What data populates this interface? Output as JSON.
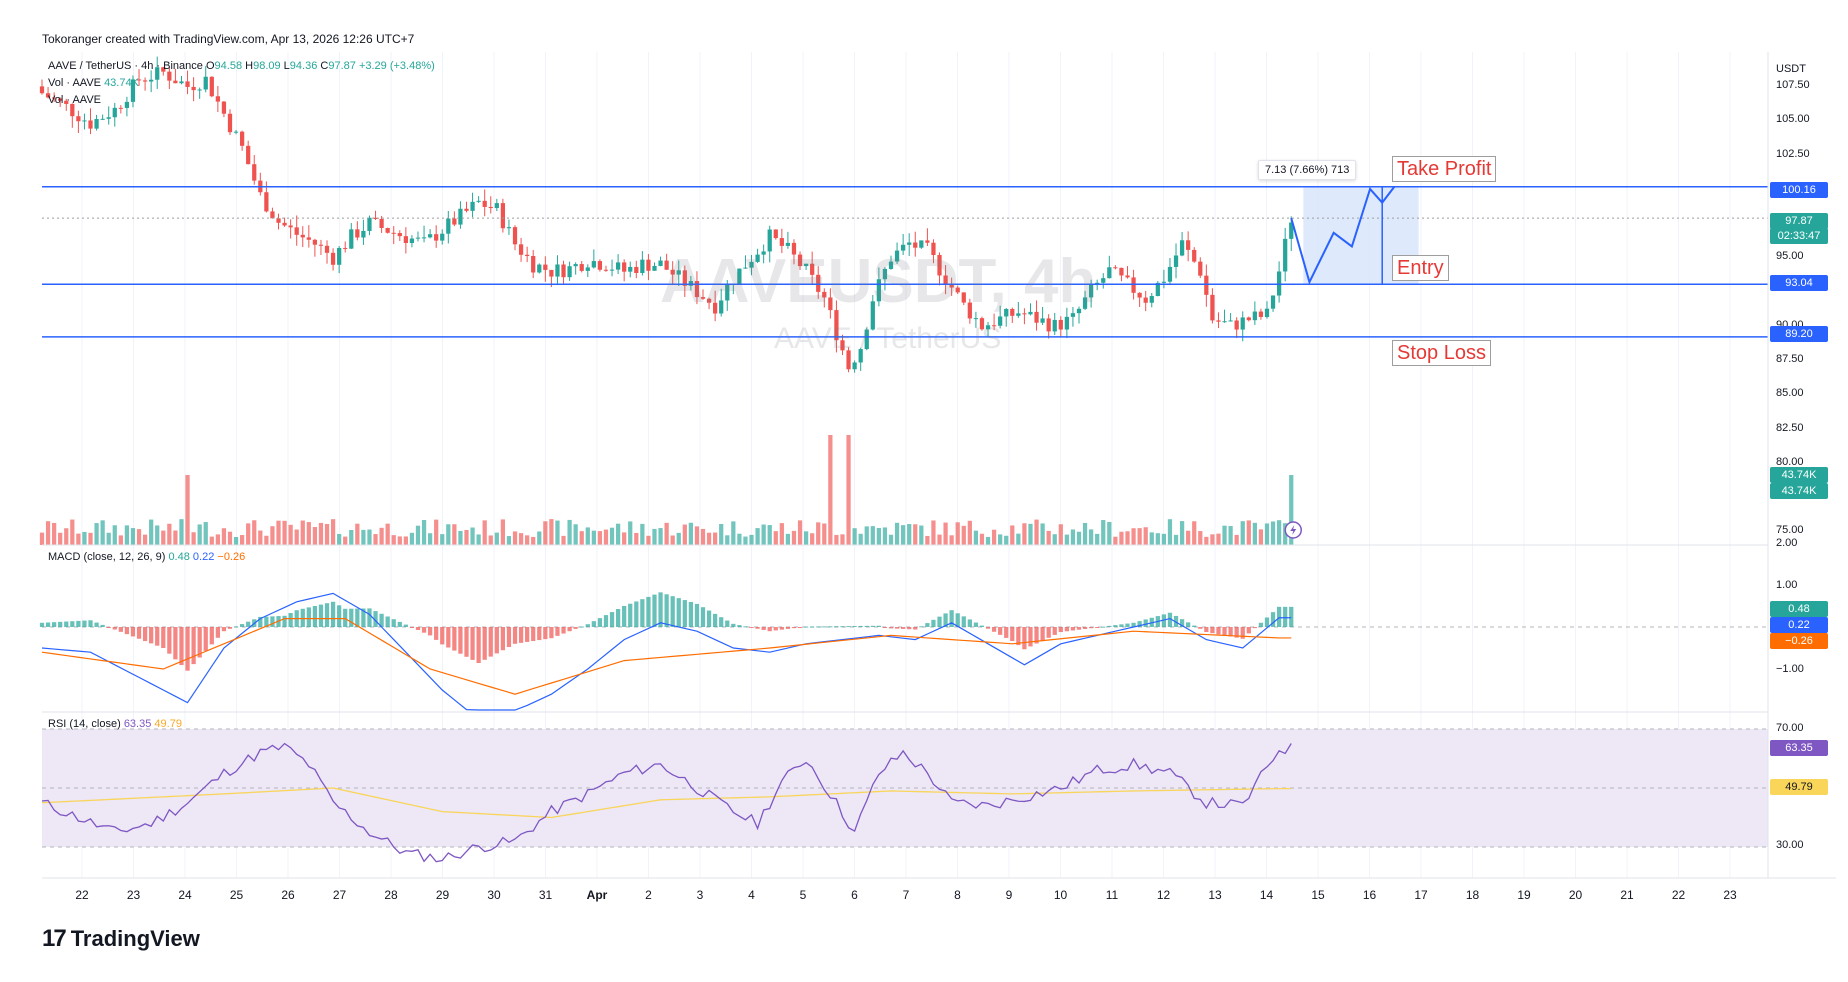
{
  "header": {
    "credit": "Tokoranger created with TradingView.com, Apr 13, 2026 12:26 UTC+7",
    "symbol_line": "AAVE / TetherUS · 4h · Binance",
    "o_label": "O",
    "o_value": "94.58",
    "h_label": "H",
    "h_value": "98.09",
    "l_label": "L",
    "l_value": "94.36",
    "c_label": "C",
    "c_value": "97.87",
    "change": "+3.29 (+3.48%)",
    "vol1": "Vol · AAVE",
    "vol1_value": "43.74K",
    "vol2": "Vol · AAVE"
  },
  "watermark": {
    "big": "AAVEUSDT, 4h",
    "small": "AAVE / TetherUS"
  },
  "brand": "TradingView",
  "colors": {
    "up": "#26a69a",
    "down": "#ef5350",
    "level_line": "#2962ff",
    "zone_fill": "#d6e4fb",
    "rsi_band": "#ede7f6",
    "rsi_line": "#7e57c2",
    "rsi_ma": "#f9d55a",
    "macd_line": "#2962ff",
    "signal_line": "#ff6d00"
  },
  "annotations": {
    "take_profit": "Take Profit",
    "entry": "Entry",
    "stop_loss": "Stop Loss",
    "measure": "7.13 (7.66%) 713"
  },
  "price_axis": {
    "currency": "USDT",
    "ticks": [
      "107.50",
      "105.00",
      "102.50",
      "95.00",
      "90.00",
      "87.50",
      "85.00",
      "82.50",
      "80.00",
      "75.00"
    ],
    "take_profit_badge": "100.16",
    "last_price_badge": "97.87",
    "countdown_badge": "02:33:47",
    "entry_badge": "93.04",
    "stop_badge": "89.20",
    "vol_badge_1": "43.74K",
    "vol_badge_2": "43.74K"
  },
  "macd": {
    "legend": "MACD (close, 12, 26, 9)",
    "v1": "0.48",
    "v2": "0.22",
    "v3": "−0.26",
    "ticks": [
      "2.00",
      "1.00",
      "−1.00"
    ],
    "badge_hist": "0.48",
    "badge_macd": "0.22",
    "badge_signal": "−0.26"
  },
  "rsi": {
    "legend": "RSI (14, close)",
    "v1": "63.35",
    "v2": "49.79",
    "ticks": [
      "70.00",
      "30.00"
    ],
    "badge_rsi": "63.35",
    "badge_ma": "49.79"
  },
  "chart_data": {
    "type": "candlestick",
    "symbol": "AAVEUSDT",
    "interval": "4h",
    "x_ticks": [
      "22",
      "23",
      "24",
      "25",
      "26",
      "27",
      "28",
      "29",
      "30",
      "31",
      "Apr",
      "2",
      "3",
      "4",
      "5",
      "6",
      "7",
      "8",
      "9",
      "10",
      "11",
      "12",
      "13",
      "14",
      "15",
      "16",
      "17",
      "18",
      "19",
      "20",
      "21",
      "22",
      "23"
    ],
    "ylim": [
      74,
      110
    ],
    "levels": {
      "take_profit": 100.16,
      "entry": 93.04,
      "stop_loss": 89.2,
      "last": 97.87
    },
    "close_path": [
      [
        0,
        107.0
      ],
      [
        4,
        106.0
      ],
      [
        8,
        104.8
      ],
      [
        12,
        105.8
      ],
      [
        16,
        108.0
      ],
      [
        20,
        108.5
      ],
      [
        24,
        107.5
      ],
      [
        27,
        108.0
      ],
      [
        30,
        105.5
      ],
      [
        33,
        103.0
      ],
      [
        36,
        99.5
      ],
      [
        39,
        97.6
      ],
      [
        42,
        96.7
      ],
      [
        45,
        96.0
      ],
      [
        48,
        95.0
      ],
      [
        51,
        96.5
      ],
      [
        54,
        97.5
      ],
      [
        57,
        97.0
      ],
      [
        60,
        96.5
      ],
      [
        63,
        96.0
      ],
      [
        66,
        97.0
      ],
      [
        69,
        98.0
      ],
      [
        72,
        99.0
      ],
      [
        75,
        98.5
      ],
      [
        78,
        96.0
      ],
      [
        81,
        94.5
      ],
      [
        84,
        94.0
      ],
      [
        87,
        94.2
      ],
      [
        90,
        94.8
      ],
      [
        93,
        94.5
      ],
      [
        96,
        94.0
      ],
      [
        99,
        94.5
      ],
      [
        102,
        94.5
      ],
      [
        105,
        93.5
      ],
      [
        108,
        92.5
      ],
      [
        111,
        91.5
      ],
      [
        114,
        93.5
      ],
      [
        117,
        95.0
      ],
      [
        120,
        96.5
      ],
      [
        123,
        95.5
      ],
      [
        126,
        94.0
      ],
      [
        129,
        92.0
      ],
      [
        131,
        89.5
      ],
      [
        133,
        87.0
      ],
      [
        135,
        88.5
      ],
      [
        137,
        92.0
      ],
      [
        140,
        95.0
      ],
      [
        143,
        96.0
      ],
      [
        146,
        95.5
      ],
      [
        149,
        93.5
      ],
      [
        152,
        91.5
      ],
      [
        155,
        90.0
      ],
      [
        158,
        90.5
      ],
      [
        161,
        91.0
      ],
      [
        164,
        90.5
      ],
      [
        167,
        90.0
      ],
      [
        170,
        90.5
      ],
      [
        173,
        92.5
      ],
      [
        176,
        94.0
      ],
      [
        179,
        93.0
      ],
      [
        182,
        92.0
      ],
      [
        185,
        93.5
      ],
      [
        188,
        96.0
      ],
      [
        191,
        94.0
      ],
      [
        193,
        90.5
      ],
      [
        196,
        90.0
      ],
      [
        199,
        90.5
      ],
      [
        202,
        90.8
      ],
      [
        204,
        94.0
      ],
      [
        206,
        97.87
      ]
    ],
    "projection": [
      [
        206,
        97.87
      ],
      [
        209,
        93.2
      ],
      [
        213,
        96.8
      ],
      [
        216,
        95.8
      ],
      [
        219,
        100.0
      ],
      [
        221,
        99.0
      ],
      [
        223,
        100.16
      ]
    ],
    "macd_series": {
      "macd": [
        [
          0,
          -0.5
        ],
        [
          8,
          -0.6
        ],
        [
          16,
          -1.2
        ],
        [
          24,
          -1.8
        ],
        [
          30,
          -0.5
        ],
        [
          36,
          0.2
        ],
        [
          42,
          0.6
        ],
        [
          48,
          0.8
        ],
        [
          54,
          0.3
        ],
        [
          60,
          -0.6
        ],
        [
          66,
          -1.5
        ],
        [
          72,
          -2.2
        ],
        [
          78,
          -2.0
        ],
        [
          84,
          -1.6
        ],
        [
          90,
          -1.0
        ],
        [
          96,
          -0.3
        ],
        [
          102,
          0.1
        ],
        [
          108,
          -0.1
        ],
        [
          114,
          -0.5
        ],
        [
          120,
          -0.6
        ],
        [
          126,
          -0.4
        ],
        [
          132,
          -0.3
        ],
        [
          138,
          -0.2
        ],
        [
          144,
          -0.3
        ],
        [
          150,
          0.1
        ],
        [
          156,
          -0.4
        ],
        [
          162,
          -0.9
        ],
        [
          168,
          -0.4
        ],
        [
          174,
          -0.2
        ],
        [
          180,
          0.0
        ],
        [
          186,
          0.2
        ],
        [
          192,
          -0.3
        ],
        [
          198,
          -0.5
        ],
        [
          204,
          0.22
        ]
      ],
      "signal": [
        [
          0,
          -0.6
        ],
        [
          20,
          -1.0
        ],
        [
          40,
          0.2
        ],
        [
          50,
          0.2
        ],
        [
          64,
          -1.0
        ],
        [
          78,
          -1.6
        ],
        [
          96,
          -0.8
        ],
        [
          120,
          -0.5
        ],
        [
          140,
          -0.2
        ],
        [
          160,
          -0.4
        ],
        [
          180,
          -0.1
        ],
        [
          204,
          -0.26
        ]
      ]
    },
    "rsi_series": [
      [
        0,
        45
      ],
      [
        6,
        40
      ],
      [
        12,
        35
      ],
      [
        18,
        38
      ],
      [
        24,
        45
      ],
      [
        30,
        55
      ],
      [
        36,
        62
      ],
      [
        40,
        64
      ],
      [
        44,
        58
      ],
      [
        48,
        45
      ],
      [
        54,
        35
      ],
      [
        60,
        28
      ],
      [
        66,
        26
      ],
      [
        72,
        30
      ],
      [
        78,
        32
      ],
      [
        84,
        42
      ],
      [
        90,
        48
      ],
      [
        96,
        55
      ],
      [
        102,
        58
      ],
      [
        108,
        50
      ],
      [
        114,
        42
      ],
      [
        118,
        38
      ],
      [
        122,
        52
      ],
      [
        126,
        60
      ],
      [
        130,
        48
      ],
      [
        134,
        35
      ],
      [
        138,
        55
      ],
      [
        142,
        62
      ],
      [
        146,
        55
      ],
      [
        150,
        45
      ],
      [
        156,
        44
      ],
      [
        162,
        47
      ],
      [
        168,
        50
      ],
      [
        174,
        56
      ],
      [
        180,
        58
      ],
      [
        186,
        55
      ],
      [
        192,
        45
      ],
      [
        198,
        44
      ],
      [
        204,
        63.35
      ]
    ],
    "rsi_ma": [
      [
        0,
        45
      ],
      [
        30,
        48
      ],
      [
        48,
        50
      ],
      [
        66,
        42
      ],
      [
        84,
        40
      ],
      [
        102,
        46
      ],
      [
        120,
        47
      ],
      [
        140,
        49
      ],
      [
        160,
        48
      ],
      [
        180,
        49
      ],
      [
        204,
        49.79
      ]
    ]
  }
}
